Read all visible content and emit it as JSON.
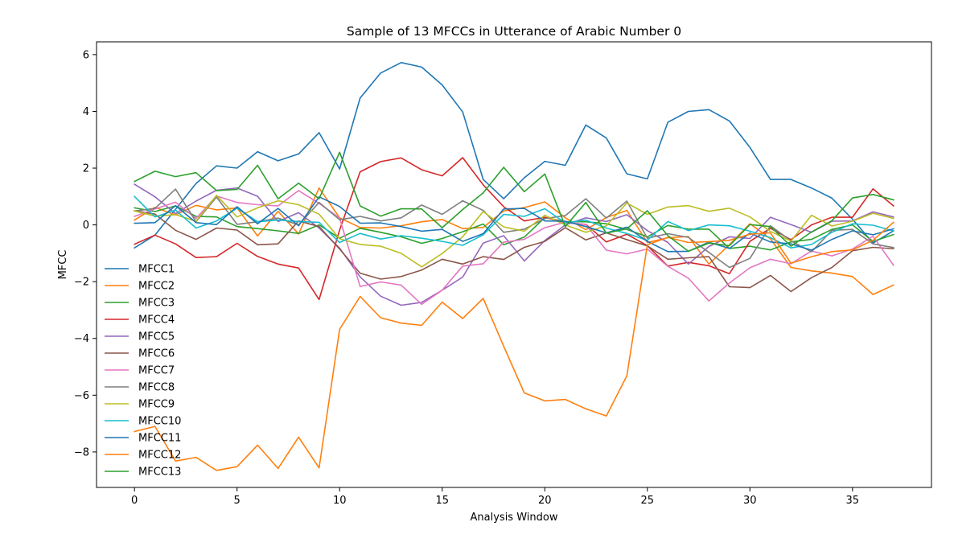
{
  "chart_data": {
    "type": "line",
    "title": "Sample of 13 MFCCs in Utterance of Arabic Number 0",
    "xlabel": "Analysis Window",
    "ylabel": "MFCC",
    "xlim": [
      -1.85,
      38.85
    ],
    "ylim": [
      -9.25,
      6.45
    ],
    "xticks": [
      0,
      5,
      10,
      15,
      20,
      25,
      30,
      35
    ],
    "yticks": [
      -8,
      -6,
      -4,
      -2,
      0,
      2,
      4,
      6
    ],
    "xtick_labels": [
      "0",
      "5",
      "10",
      "15",
      "20",
      "25",
      "30",
      "35"
    ],
    "ytick_labels": [
      "−8",
      "−6",
      "−4",
      "−2",
      "0",
      "2",
      "4",
      "6"
    ],
    "grid": false,
    "legend_position": "lower-left",
    "x": [
      0,
      1,
      2,
      3,
      4,
      5,
      6,
      7,
      8,
      9,
      10,
      11,
      12,
      13,
      14,
      15,
      16,
      17,
      18,
      19,
      20,
      21,
      22,
      23,
      24,
      25,
      26,
      27,
      28,
      29,
      30,
      31,
      32,
      33,
      34,
      35,
      36,
      37
    ],
    "series": [
      {
        "name": "MFCC1",
        "color": "#1f77b4",
        "values": [
          -0.81,
          -0.36,
          0.55,
          1.46,
          2.08,
          2.0,
          2.58,
          2.26,
          2.5,
          3.25,
          1.97,
          4.47,
          5.35,
          5.72,
          5.56,
          4.93,
          3.98,
          1.6,
          0.92,
          1.66,
          2.24,
          2.1,
          3.52,
          3.06,
          1.8,
          1.62,
          3.62,
          4.0,
          4.06,
          3.66,
          2.73,
          1.6,
          1.6,
          1.3,
          0.94,
          0.2,
          -0.64,
          -0.21
        ]
      },
      {
        "name": "MFCC2",
        "color": "#ff7f0e",
        "values": [
          0.17,
          0.62,
          0.35,
          0.69,
          0.53,
          0.6,
          -0.39,
          0.48,
          -0.32,
          1.3,
          0.25,
          -0.09,
          -0.11,
          -0.03,
          0.11,
          0.19,
          -0.13,
          -0.09,
          0.49,
          0.61,
          0.81,
          0.25,
          -0.17,
          0.26,
          0.51,
          -0.62,
          -0.45,
          -0.41,
          -1.38,
          -0.7,
          0.04,
          -0.49,
          -1.5,
          -1.62,
          -1.7,
          -1.82,
          -2.45,
          -2.12
        ]
      },
      {
        "name": "MFCC3",
        "color": "#2ca02c",
        "values": [
          0.6,
          0.47,
          0.67,
          0.3,
          0.28,
          -0.06,
          -0.13,
          -0.21,
          -0.3,
          0.0,
          -0.47,
          -0.12,
          -0.26,
          -0.42,
          -0.65,
          -0.48,
          -0.24,
          0.03,
          -0.7,
          -0.43,
          0.26,
          0.11,
          0.11,
          0.04,
          -0.16,
          -0.42,
          -0.02,
          -0.15,
          -0.15,
          -0.83,
          -0.75,
          -0.88,
          -0.6,
          -0.51,
          -0.16,
          0.0,
          -0.58,
          -0.34
        ]
      },
      {
        "name": "MFCC4",
        "color": "#d62728",
        "values": [
          -0.68,
          -0.36,
          -0.67,
          -1.15,
          -1.12,
          -0.65,
          -1.11,
          -1.38,
          -1.52,
          -2.63,
          -0.18,
          1.87,
          2.23,
          2.36,
          1.94,
          1.73,
          2.37,
          1.41,
          0.64,
          0.14,
          0.27,
          0.08,
          0.02,
          -0.6,
          -0.33,
          -0.73,
          -1.45,
          -1.32,
          -1.44,
          -1.72,
          -0.58,
          -0.12,
          -0.52,
          0.0,
          0.27,
          0.27,
          1.27,
          0.67
        ]
      },
      {
        "name": "MFCC5",
        "color": "#9467bd",
        "values": [
          1.43,
          0.99,
          0.4,
          0.84,
          1.22,
          1.3,
          1.01,
          0.12,
          0.43,
          -0.11,
          -0.82,
          -1.83,
          -2.51,
          -2.83,
          -2.73,
          -2.3,
          -1.84,
          -0.64,
          -0.38,
          -1.27,
          -0.55,
          0.0,
          0.25,
          0.12,
          0.36,
          -0.2,
          -0.62,
          -1.38,
          -0.76,
          -0.42,
          -0.48,
          0.27,
          0.01,
          -0.26,
          0.13,
          0.14,
          0.46,
          0.28
        ]
      },
      {
        "name": "MFCC6",
        "color": "#8c564b",
        "values": [
          0.5,
          0.38,
          -0.19,
          -0.51,
          -0.11,
          -0.18,
          -0.7,
          -0.67,
          0.14,
          -0.06,
          -0.85,
          -1.7,
          -1.91,
          -1.82,
          -1.59,
          -1.21,
          -1.38,
          -1.12,
          -1.22,
          -0.79,
          -0.58,
          -0.1,
          -0.53,
          -0.28,
          -0.52,
          -0.74,
          -1.21,
          -1.16,
          -1.12,
          -2.18,
          -2.21,
          -1.78,
          -2.35,
          -1.86,
          -1.5,
          -0.91,
          -0.79,
          -0.84
        ]
      },
      {
        "name": "MFCC7",
        "color": "#e377c2",
        "values": [
          0.3,
          0.56,
          0.8,
          0.23,
          1.02,
          0.79,
          0.71,
          0.67,
          1.21,
          0.76,
          0.24,
          -2.17,
          -2.01,
          -2.12,
          -2.8,
          -2.3,
          -1.45,
          -1.37,
          -0.61,
          -0.51,
          -0.1,
          0.1,
          0.01,
          -0.89,
          -1.02,
          -0.85,
          -1.46,
          -1.88,
          -2.68,
          -2.05,
          -1.51,
          -1.21,
          -1.37,
          -0.92,
          -1.09,
          -0.85,
          -0.4,
          -1.42
        ]
      },
      {
        "name": "MFCC8",
        "color": "#7f7f7f",
        "values": [
          0.49,
          0.58,
          1.26,
          0.11,
          0.98,
          0.02,
          0.11,
          0.24,
          0.0,
          0.79,
          0.18,
          0.3,
          0.14,
          0.25,
          0.7,
          0.37,
          0.85,
          0.51,
          -0.26,
          -0.15,
          0.22,
          0.33,
          0.92,
          0.24,
          0.84,
          -0.47,
          -0.31,
          -0.44,
          -0.97,
          -1.5,
          -1.18,
          -0.03,
          -0.56,
          -0.95,
          -0.19,
          -0.16,
          -0.67,
          -0.8
        ]
      },
      {
        "name": "MFCC9",
        "color": "#bcbd22",
        "values": [
          0.49,
          0.31,
          0.36,
          0.13,
          1.04,
          0.28,
          0.6,
          0.85,
          0.71,
          0.38,
          -0.49,
          -0.69,
          -0.75,
          -1.0,
          -1.48,
          -1.01,
          -0.42,
          0.47,
          -0.07,
          -0.22,
          0.34,
          0.0,
          -0.26,
          -0.03,
          0.77,
          0.37,
          0.63,
          0.68,
          0.48,
          0.59,
          0.28,
          -0.23,
          -0.57,
          0.34,
          -0.04,
          0.13,
          0.41,
          0.23
        ]
      },
      {
        "name": "MFCC10",
        "color": "#17becf",
        "values": [
          1.0,
          0.28,
          0.52,
          -0.11,
          0.14,
          0.59,
          0.11,
          0.17,
          0.12,
          0.09,
          -0.62,
          -0.3,
          -0.5,
          -0.38,
          -0.47,
          -0.58,
          -0.72,
          -0.35,
          0.37,
          0.3,
          0.57,
          0.07,
          0.17,
          -0.11,
          -0.3,
          -0.54,
          0.12,
          -0.2,
          0.0,
          -0.03,
          -0.22,
          -0.45,
          -0.81,
          -0.69,
          -0.26,
          0.04,
          -0.01,
          -0.21
        ]
      },
      {
        "name": "MFCC11",
        "color": "#1f77b4",
        "values": [
          0.06,
          0.08,
          0.68,
          0.08,
          0.01,
          0.64,
          0.04,
          0.58,
          -0.03,
          0.99,
          0.65,
          0.06,
          0.07,
          -0.06,
          -0.22,
          -0.16,
          -0.58,
          -0.31,
          0.56,
          0.58,
          0.14,
          0.13,
          -0.06,
          -0.28,
          -0.08,
          -0.58,
          -0.94,
          -0.93,
          -0.61,
          -0.83,
          -0.29,
          -0.6,
          -0.67,
          -0.89,
          -0.51,
          -0.21,
          -0.35,
          -0.14
        ]
      },
      {
        "name": "MFCC12",
        "color": "#ff7f0e",
        "values": [
          -7.28,
          -7.1,
          -8.32,
          -8.19,
          -8.65,
          -8.52,
          -7.76,
          -8.58,
          -7.48,
          -8.56,
          -3.68,
          -2.52,
          -3.27,
          -3.46,
          -3.54,
          -2.72,
          -3.3,
          -2.59,
          -4.28,
          -5.92,
          -6.2,
          -6.15,
          -6.48,
          -6.73,
          -5.32,
          -0.7,
          -0.44,
          -0.62,
          -0.59,
          -0.54,
          -0.33,
          -0.28,
          -1.35,
          -1.12,
          -0.94,
          -0.88,
          -0.54,
          0.09
        ]
      },
      {
        "name": "MFCC13",
        "color": "#2ca02c",
        "values": [
          1.53,
          1.89,
          1.7,
          1.84,
          1.21,
          1.25,
          2.1,
          0.92,
          1.47,
          0.92,
          2.56,
          0.67,
          0.31,
          0.57,
          0.56,
          -0.1,
          0.54,
          1.13,
          2.03,
          1.17,
          1.79,
          -0.06,
          0.79,
          -0.29,
          -0.14,
          0.5,
          -0.38,
          -0.93,
          -0.64,
          -0.73,
          0.01,
          -0.06,
          -0.75,
          -0.25,
          0.15,
          0.95,
          1.07,
          0.88
        ]
      }
    ]
  }
}
